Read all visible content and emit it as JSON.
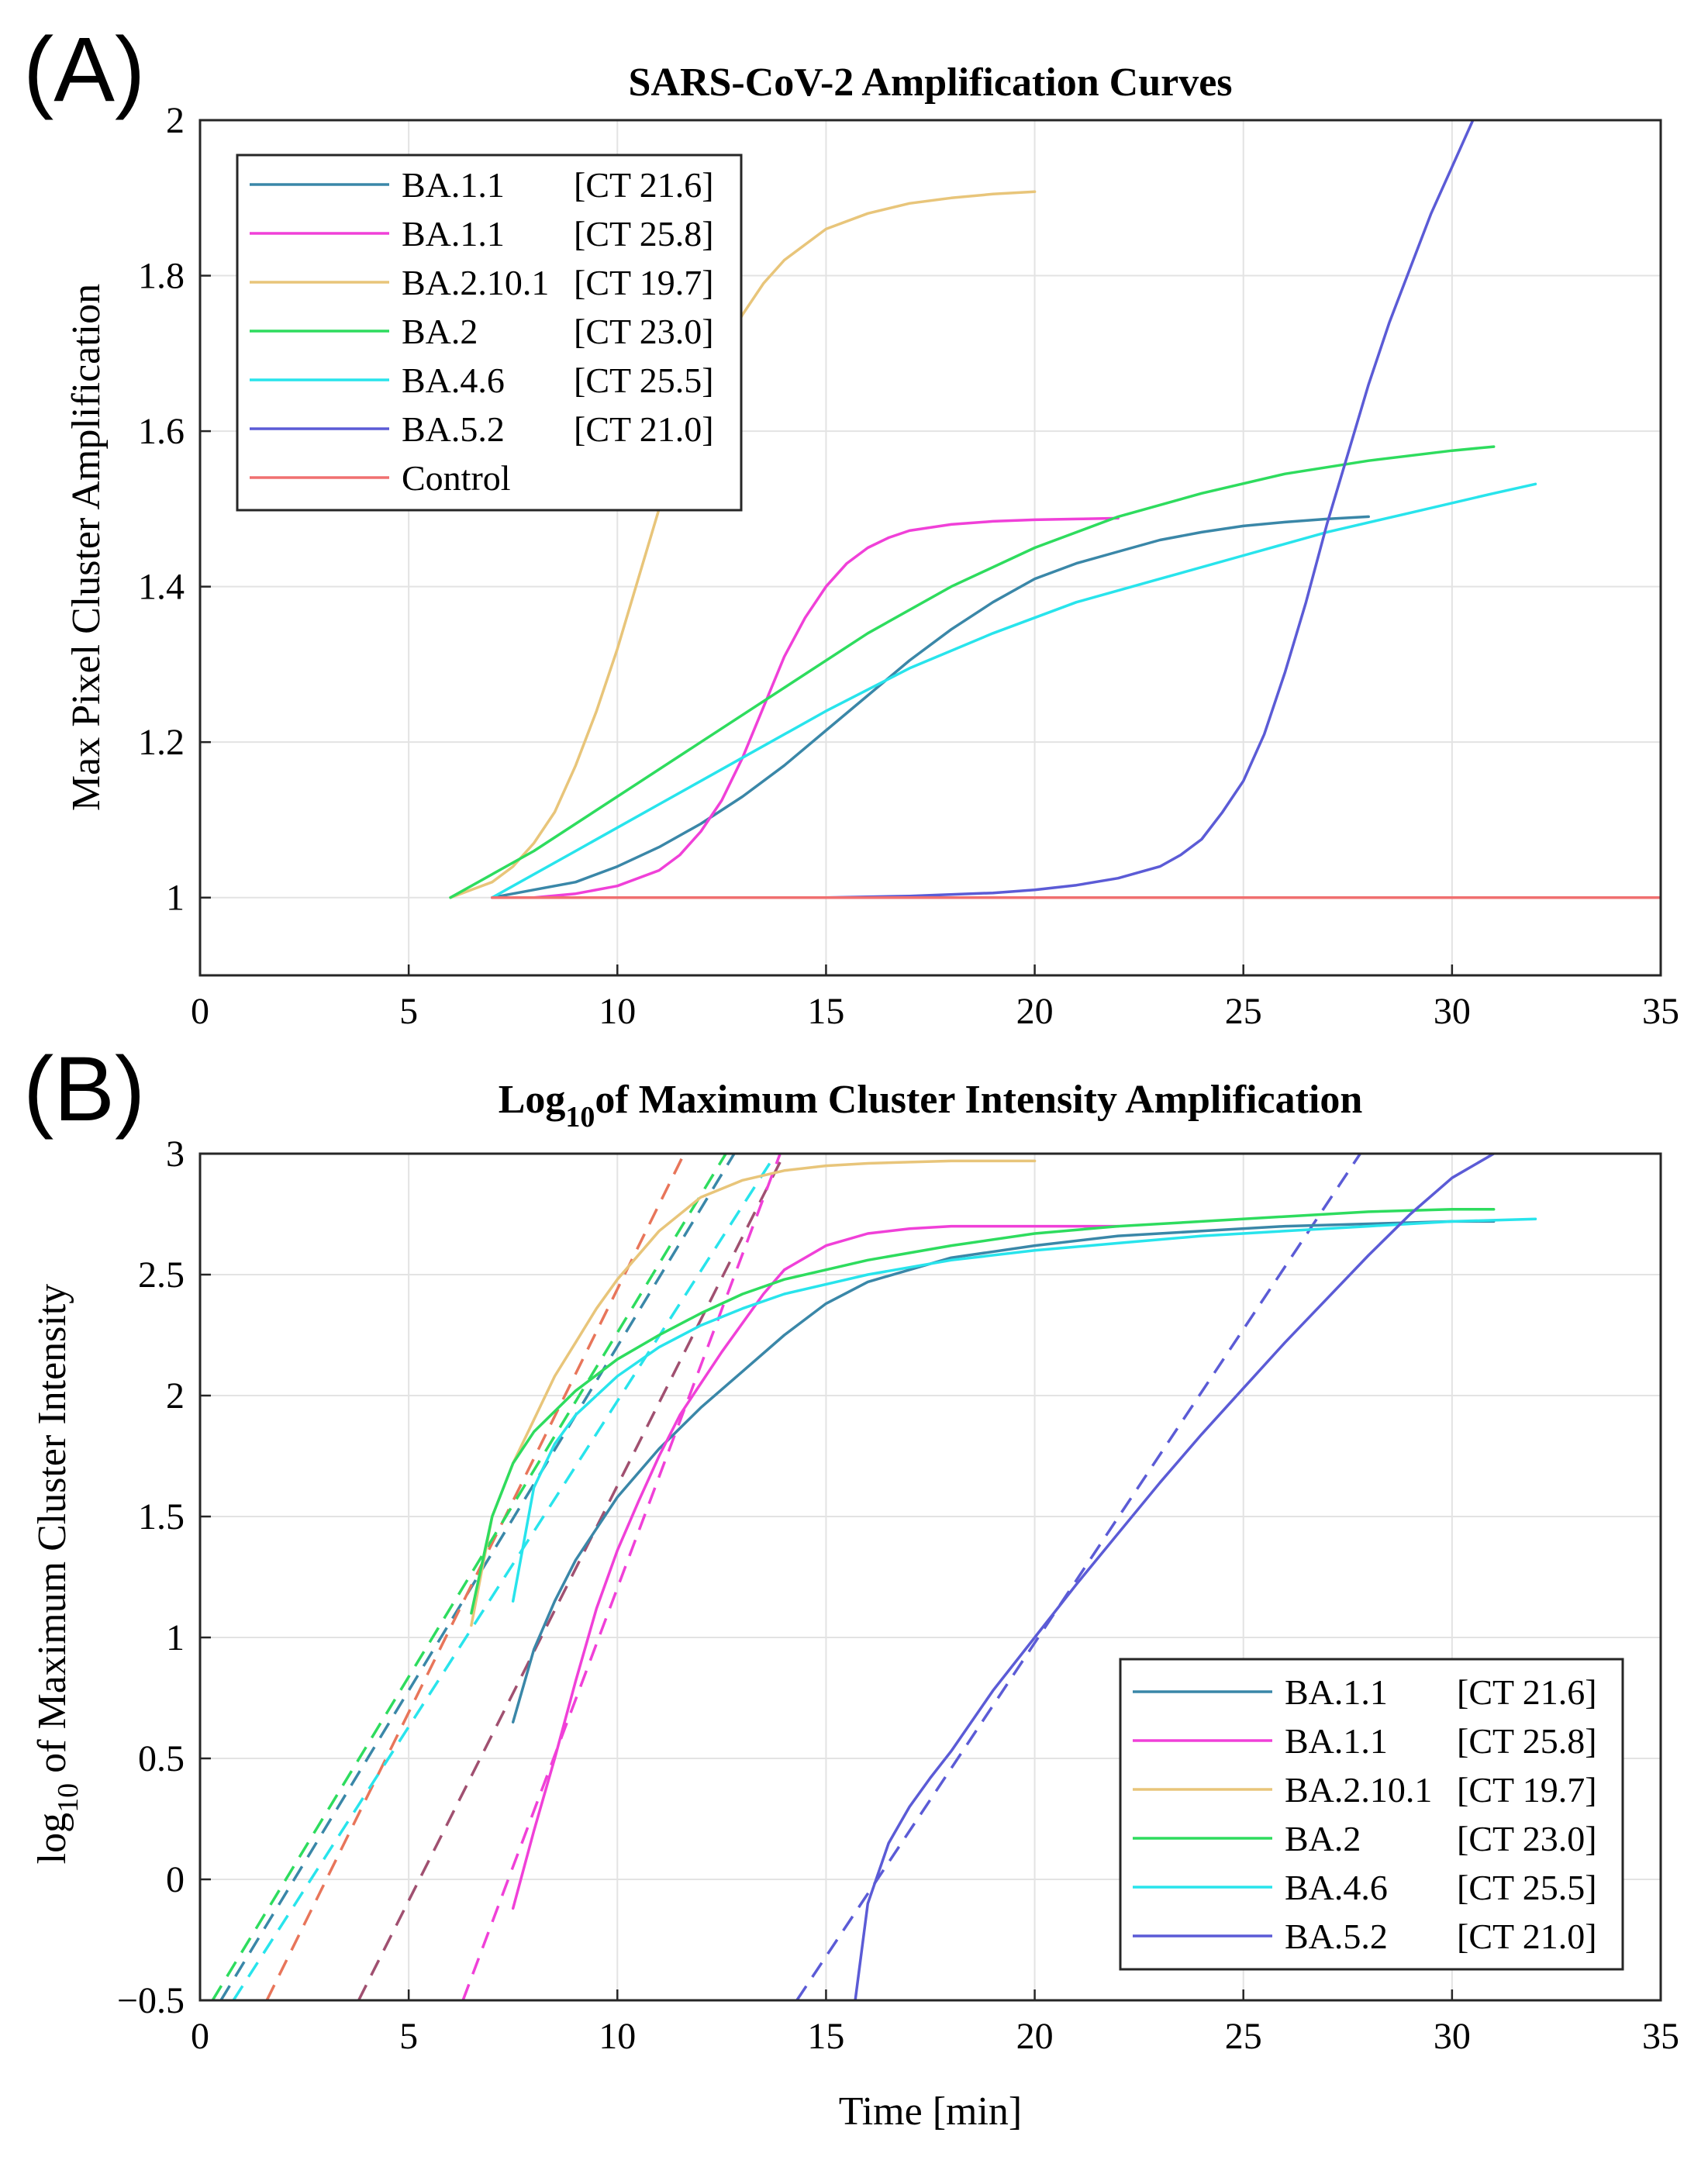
{
  "chart_data": [
    {
      "panel_label": "(A)",
      "type": "line",
      "title": "SARS-CoV-2 Amplification Curves",
      "xlabel": "",
      "ylabel": "Max Pixel Cluster Amplification",
      "xlim": [
        0,
        35
      ],
      "ylim": [
        0.9,
        2.0
      ],
      "xticks": [
        "0",
        "5",
        "10",
        "15",
        "20",
        "25",
        "30",
        "35"
      ],
      "yticks": [
        "1",
        "1.2",
        "1.4",
        "1.6",
        "1.8",
        "2"
      ],
      "grid": true,
      "legend_position": "top-left",
      "series": [
        {
          "name": "BA.1.1",
          "ct": "[CT 21.6]",
          "color": "#3a87a8",
          "x": [
            7,
            8,
            9,
            10,
            11,
            12,
            13,
            14,
            15,
            16,
            17,
            18,
            19,
            20,
            21,
            22,
            23,
            24,
            25,
            26,
            27,
            28
          ],
          "y": [
            1.0,
            1.01,
            1.02,
            1.04,
            1.065,
            1.095,
            1.13,
            1.17,
            1.215,
            1.26,
            1.305,
            1.345,
            1.38,
            1.41,
            1.43,
            1.445,
            1.46,
            1.47,
            1.478,
            1.483,
            1.487,
            1.49
          ]
        },
        {
          "name": "BA.1.1",
          "ct": "[CT 25.8]",
          "color": "#f040d8",
          "x": [
            7,
            8,
            9,
            10,
            11,
            11.5,
            12,
            12.5,
            13,
            13.5,
            14,
            14.5,
            15,
            15.5,
            16,
            16.5,
            17,
            18,
            19,
            20,
            21,
            22
          ],
          "y": [
            1.0,
            1.0,
            1.005,
            1.015,
            1.035,
            1.055,
            1.085,
            1.125,
            1.18,
            1.245,
            1.31,
            1.36,
            1.4,
            1.43,
            1.45,
            1.463,
            1.472,
            1.48,
            1.484,
            1.486,
            1.487,
            1.488
          ]
        },
        {
          "name": "BA.2.10.1",
          "ct": "[CT 19.7]",
          "color": "#e8c57a",
          "x": [
            6,
            7,
            7.5,
            8,
            8.5,
            9,
            9.5,
            10,
            10.5,
            11,
            11.5,
            12,
            12.5,
            13,
            13.5,
            14,
            15,
            16,
            17,
            18,
            19,
            20
          ],
          "y": [
            1.0,
            1.02,
            1.04,
            1.07,
            1.11,
            1.17,
            1.24,
            1.32,
            1.41,
            1.5,
            1.57,
            1.64,
            1.7,
            1.75,
            1.79,
            1.82,
            1.86,
            1.88,
            1.893,
            1.9,
            1.905,
            1.908
          ]
        },
        {
          "name": "BA.2",
          "ct": "[CT 23.0]",
          "color": "#2edc5e",
          "x": [
            6,
            8,
            10,
            12,
            14,
            16,
            18,
            20,
            22,
            24,
            26,
            28,
            30,
            31
          ],
          "y": [
            1.0,
            1.06,
            1.13,
            1.2,
            1.27,
            1.34,
            1.4,
            1.45,
            1.49,
            1.52,
            1.545,
            1.562,
            1.575,
            1.58
          ]
        },
        {
          "name": "BA.4.6",
          "ct": "[CT 25.5]",
          "color": "#28e4ec",
          "x": [
            7,
            9,
            11,
            13,
            15,
            17,
            19,
            21,
            23,
            25,
            27,
            29,
            31,
            32
          ],
          "y": [
            1.0,
            1.06,
            1.12,
            1.18,
            1.24,
            1.295,
            1.34,
            1.38,
            1.41,
            1.44,
            1.47,
            1.495,
            1.52,
            1.532
          ]
        },
        {
          "name": "BA.5.2",
          "ct": "[CT 21.0]",
          "color": "#5b5bd6",
          "x": [
            15,
            17,
            19,
            20,
            21,
            22,
            23,
            23.5,
            24,
            24.5,
            25,
            25.5,
            26,
            26.5,
            27,
            27.5,
            28,
            28.5,
            29,
            29.5,
            30,
            30.5
          ],
          "y": [
            1.0,
            1.002,
            1.006,
            1.01,
            1.016,
            1.025,
            1.04,
            1.055,
            1.075,
            1.11,
            1.15,
            1.21,
            1.29,
            1.38,
            1.48,
            1.57,
            1.66,
            1.74,
            1.81,
            1.88,
            1.94,
            2.0
          ]
        },
        {
          "name": "Control",
          "ct": "",
          "color": "#f07070",
          "x": [
            7,
            35
          ],
          "y": [
            1.0,
            1.0
          ]
        }
      ]
    },
    {
      "panel_label": "(B)",
      "type": "line",
      "title": "of Maximum Cluster Intensity Amplification",
      "title_prefix": "Log",
      "title_subscript": "10",
      "xlabel": "Time [min]",
      "ylabel_prefix": "log",
      "ylabel_subscript": "10",
      "ylabel": " of Maximum Cluster Intensity",
      "xlim": [
        0,
        35
      ],
      "ylim": [
        -0.5,
        3.0
      ],
      "xticks": [
        "0",
        "5",
        "10",
        "15",
        "20",
        "25",
        "30",
        "35"
      ],
      "yticks": [
        "−0.5",
        "0",
        "0.5",
        "1",
        "1.5",
        "2",
        "2.5",
        "3"
      ],
      "grid": true,
      "legend_position": "bottom-right",
      "series": [
        {
          "name": "BA.1.1",
          "ct": "[CT 21.6]",
          "color": "#3a87a8",
          "x": [
            7.5,
            8,
            8.5,
            9,
            10,
            11,
            12,
            13,
            14,
            15,
            16,
            18,
            20,
            22,
            24,
            26,
            28,
            30,
            31
          ],
          "y": [
            0.65,
            0.95,
            1.15,
            1.32,
            1.58,
            1.78,
            1.95,
            2.1,
            2.25,
            2.38,
            2.47,
            2.57,
            2.62,
            2.66,
            2.68,
            2.7,
            2.71,
            2.72,
            2.72
          ]
        },
        {
          "name": "BA.1.1",
          "ct": "[CT 25.8]",
          "color": "#f040d8",
          "x": [
            7.5,
            8,
            8.5,
            9,
            9.5,
            10,
            10.5,
            11,
            11.5,
            12,
            12.5,
            13,
            13.5,
            14,
            15,
            16,
            17,
            18,
            19,
            20,
            21,
            22
          ],
          "y": [
            -0.12,
            0.2,
            0.5,
            0.82,
            1.12,
            1.36,
            1.56,
            1.75,
            1.92,
            2.05,
            2.18,
            2.3,
            2.42,
            2.52,
            2.62,
            2.67,
            2.69,
            2.7,
            2.7,
            2.7,
            2.7,
            2.7
          ]
        },
        {
          "name": "BA.2.10.1",
          "ct": "[CT 19.7]",
          "color": "#e8c57a",
          "x": [
            6.5,
            7,
            7.5,
            8,
            8.5,
            9,
            9.5,
            10,
            11,
            12,
            13,
            14,
            15,
            16,
            17,
            18,
            19,
            20
          ],
          "y": [
            1.05,
            1.5,
            1.72,
            1.9,
            2.08,
            2.22,
            2.36,
            2.48,
            2.68,
            2.82,
            2.89,
            2.93,
            2.95,
            2.96,
            2.965,
            2.97,
            2.97,
            2.97
          ]
        },
        {
          "name": "BA.2",
          "ct": "[CT 23.0]",
          "color": "#2edc5e",
          "x": [
            6.5,
            7,
            7.5,
            8,
            9,
            10,
            11,
            12,
            13,
            14,
            16,
            18,
            20,
            22,
            24,
            26,
            28,
            30,
            31
          ],
          "y": [
            1.1,
            1.5,
            1.72,
            1.85,
            2.02,
            2.15,
            2.25,
            2.34,
            2.42,
            2.48,
            2.56,
            2.62,
            2.67,
            2.7,
            2.72,
            2.74,
            2.76,
            2.77,
            2.77
          ]
        },
        {
          "name": "BA.4.6",
          "ct": "[CT 25.5]",
          "color": "#28e4ec",
          "x": [
            7.5,
            8,
            8.5,
            9,
            10,
            11,
            12,
            13,
            14,
            16,
            18,
            20,
            22,
            24,
            26,
            28,
            30,
            32
          ],
          "y": [
            1.15,
            1.62,
            1.8,
            1.92,
            2.08,
            2.2,
            2.29,
            2.36,
            2.42,
            2.5,
            2.56,
            2.6,
            2.63,
            2.66,
            2.68,
            2.7,
            2.72,
            2.73
          ]
        },
        {
          "name": "BA.5.2",
          "ct": "[CT 21.0]",
          "color": "#5b5bd6",
          "x": [
            15.7,
            16,
            16.5,
            17,
            17.5,
            18,
            19,
            20,
            21,
            22,
            23,
            24,
            25,
            26,
            27,
            28,
            29,
            30,
            31
          ],
          "y": [
            -0.5,
            -0.1,
            0.15,
            0.3,
            0.42,
            0.53,
            0.78,
            1.0,
            1.22,
            1.43,
            1.64,
            1.84,
            2.03,
            2.22,
            2.4,
            2.58,
            2.75,
            2.9,
            3.0
          ]
        }
      ],
      "fit_lines": [
        {
          "color": "#3a87a8",
          "x": [
            0.5,
            12.8
          ],
          "y": [
            -0.5,
            3.0
          ]
        },
        {
          "color": "#e8755a",
          "x": [
            1.6,
            11.6
          ],
          "y": [
            -0.5,
            3.0
          ]
        },
        {
          "color": "#2edc5e",
          "x": [
            0.3,
            12.6
          ],
          "y": [
            -0.5,
            3.0
          ]
        },
        {
          "color": "#28e4ec",
          "x": [
            0.8,
            13.8
          ],
          "y": [
            -0.5,
            3.0
          ]
        },
        {
          "color": "#a05070",
          "x": [
            3.8,
            14.0
          ],
          "y": [
            -0.5,
            3.0
          ]
        },
        {
          "color": "#f040d8",
          "x": [
            6.3,
            13.9
          ],
          "y": [
            -0.5,
            3.0
          ]
        },
        {
          "color": "#5b5bd6",
          "x": [
            14.3,
            27.8
          ],
          "y": [
            -0.5,
            3.0
          ]
        }
      ]
    }
  ]
}
